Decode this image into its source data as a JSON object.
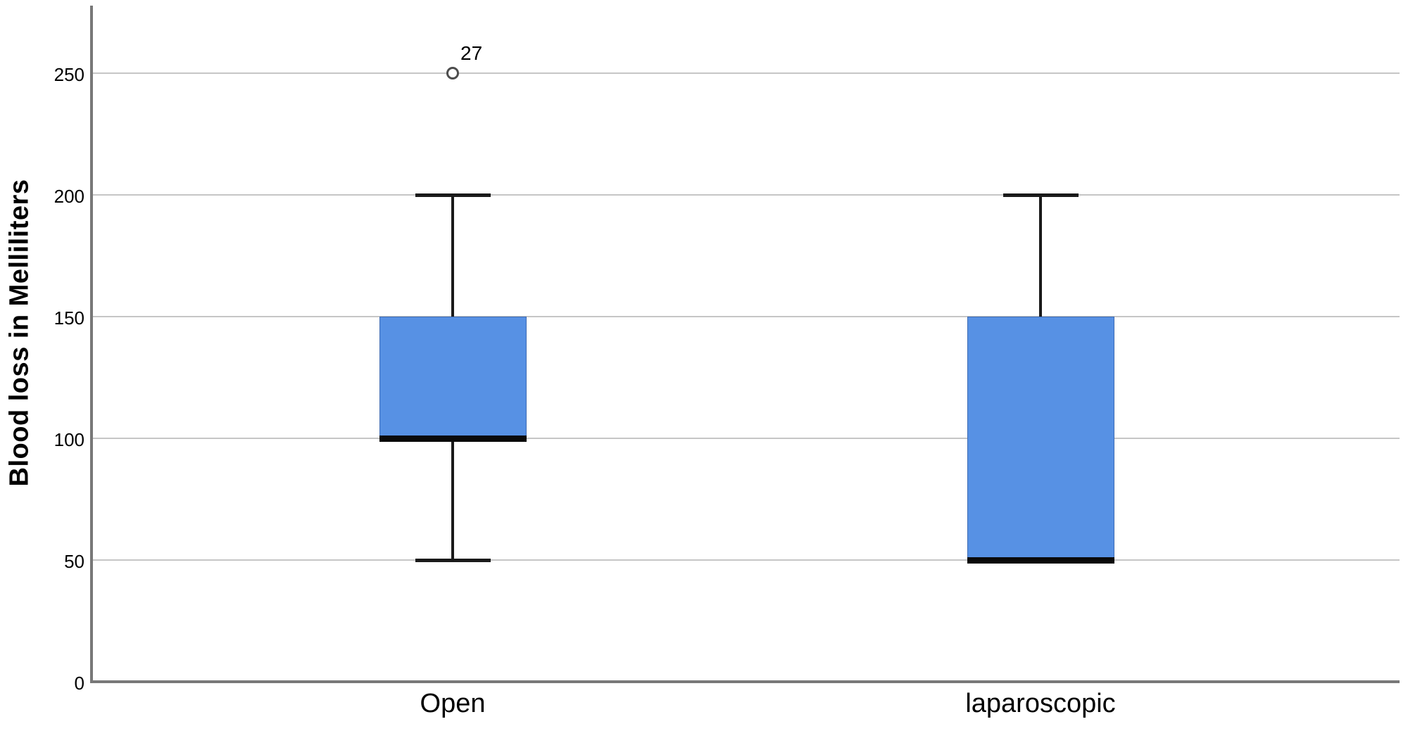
{
  "chart_data": {
    "type": "boxplot",
    "title": "",
    "xlabel": "",
    "ylabel": "Blood loss in Melliliters",
    "ylim": [
      0,
      278
    ],
    "yticks": [
      0,
      50,
      100,
      150,
      200,
      250
    ],
    "grid": true,
    "legend": "none",
    "categories": [
      "Open",
      "laparoscopic"
    ],
    "series": [
      {
        "category": "Open",
        "whisker_low": 50,
        "q1": 100,
        "median": 100,
        "q3": 150,
        "whisker_high": 200,
        "outliers": [
          {
            "value": 250,
            "label": "27"
          }
        ]
      },
      {
        "category": "laparoscopic",
        "whisker_low": 50,
        "q1": 50,
        "median": 50,
        "q3": 150,
        "whisker_high": 200,
        "outliers": []
      }
    ],
    "colors": {
      "box_fill": "#5791e4",
      "box_edge": "#3f6cb4",
      "median": "#0a0a0a",
      "whisker": "#1a1a1a",
      "gridline": "#c6c6c6",
      "axis": "#787878",
      "outlier_ring": "#4d4d4d",
      "text": "#000000"
    }
  }
}
